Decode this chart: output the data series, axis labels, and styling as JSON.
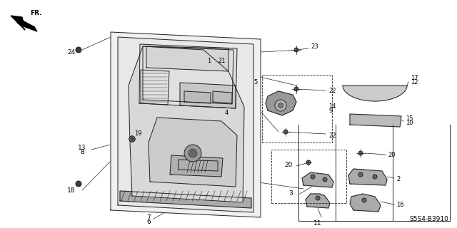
{
  "bg_color": "#ffffff",
  "diagram_code": "S5S4-B3910",
  "line_color": "#222222",
  "lw": 0.7
}
